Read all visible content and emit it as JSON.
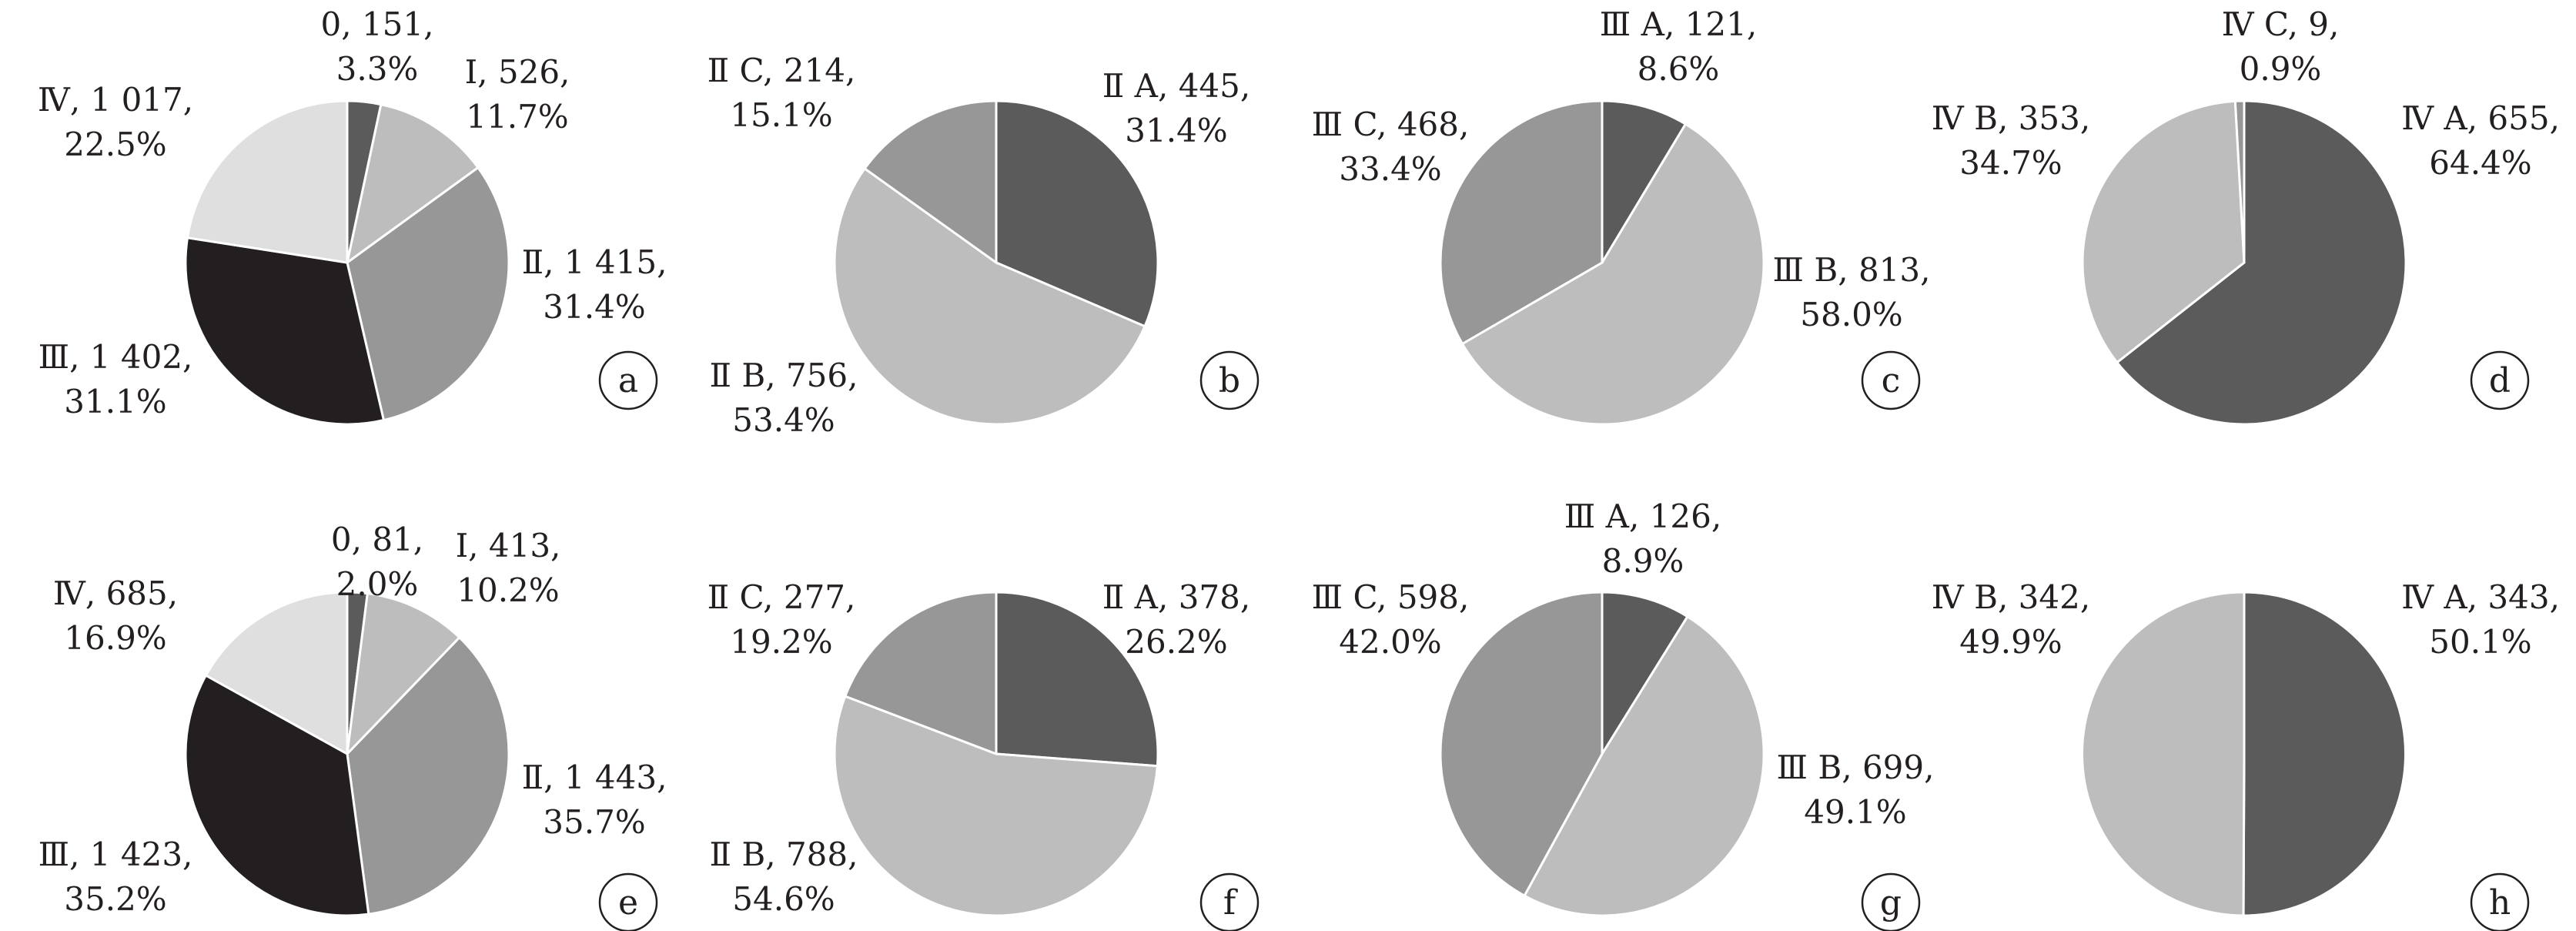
{
  "chart_data": [
    {
      "type": "pie",
      "panel_label": "a",
      "slices": [
        {
          "category": "0",
          "value": 151,
          "percent": "3.3%",
          "label_line1": "0, 151,",
          "label_line2": "3.3%",
          "color": "#5b5b5b"
        },
        {
          "category": "Ⅰ",
          "value": 526,
          "percent": "11.7%",
          "label_line1": "Ⅰ, 526,",
          "label_line2": "11.7%",
          "color": "#bdbdbd"
        },
        {
          "category": "Ⅱ",
          "value": 1415,
          "percent": "31.4%",
          "label_line1": "Ⅱ, 1 415,",
          "label_line2": "31.4%",
          "color": "#979797"
        },
        {
          "category": "Ⅲ",
          "value": 1402,
          "percent": "31.1%",
          "label_line1": "Ⅲ, 1 402,",
          "label_line2": "31.1%",
          "color": "#231f20"
        },
        {
          "category": "Ⅳ",
          "value": 1017,
          "percent": "22.5%",
          "label_line1": "Ⅳ, 1 017,",
          "label_line2": "22.5%",
          "color": "#dfdfdf"
        }
      ]
    },
    {
      "type": "pie",
      "panel_label": "b",
      "slices": [
        {
          "category": "ⅡA",
          "value": 445,
          "percent": "31.4%",
          "label_line1": "Ⅱ A, 445,",
          "label_line2": "31.4%",
          "color": "#5b5b5b"
        },
        {
          "category": "ⅡB",
          "value": 756,
          "percent": "53.4%",
          "label_line1": "Ⅱ B, 756,",
          "label_line2": "53.4%",
          "color": "#bdbdbd"
        },
        {
          "category": "ⅡC",
          "value": 214,
          "percent": "15.1%",
          "label_line1": "Ⅱ C, 214,",
          "label_line2": "15.1%",
          "color": "#979797"
        }
      ]
    },
    {
      "type": "pie",
      "panel_label": "c",
      "slices": [
        {
          "category": "ⅢA",
          "value": 121,
          "percent": "8.6%",
          "label_line1": "Ⅲ A, 121,",
          "label_line2": "8.6%",
          "color": "#5b5b5b"
        },
        {
          "category": "ⅢB",
          "value": 813,
          "percent": "58.0%",
          "label_line1": "Ⅲ B, 813,",
          "label_line2": "58.0%",
          "color": "#bdbdbd"
        },
        {
          "category": "ⅢC",
          "value": 468,
          "percent": "33.4%",
          "label_line1": "Ⅲ C, 468,",
          "label_line2": "33.4%",
          "color": "#979797"
        }
      ]
    },
    {
      "type": "pie",
      "panel_label": "d",
      "slices": [
        {
          "category": "ⅣA",
          "value": 655,
          "percent": "64.4%",
          "label_line1": "Ⅳ A, 655,",
          "label_line2": "64.4%",
          "color": "#5b5b5b"
        },
        {
          "category": "ⅣB",
          "value": 353,
          "percent": "34.7%",
          "label_line1": "Ⅳ B, 353,",
          "label_line2": "34.7%",
          "color": "#bdbdbd"
        },
        {
          "category": "ⅣC",
          "value": 9,
          "percent": "0.9%",
          "label_line1": "Ⅳ C, 9,",
          "label_line2": "0.9%",
          "color": "#979797"
        }
      ]
    },
    {
      "type": "pie",
      "panel_label": "e",
      "slices": [
        {
          "category": "0",
          "value": 81,
          "percent": "2.0%",
          "label_line1": "0, 81,",
          "label_line2": "2.0%",
          "color": "#5b5b5b"
        },
        {
          "category": "Ⅰ",
          "value": 413,
          "percent": "10.2%",
          "label_line1": "Ⅰ, 413,",
          "label_line2": "10.2%",
          "color": "#bdbdbd"
        },
        {
          "category": "Ⅱ",
          "value": 1443,
          "percent": "35.7%",
          "label_line1": "Ⅱ, 1 443,",
          "label_line2": "35.7%",
          "color": "#979797"
        },
        {
          "category": "Ⅲ",
          "value": 1423,
          "percent": "35.2%",
          "label_line1": "Ⅲ, 1 423,",
          "label_line2": "35.2%",
          "color": "#231f20"
        },
        {
          "category": "Ⅳ",
          "value": 685,
          "percent": "16.9%",
          "label_line1": "Ⅳ, 685,",
          "label_line2": "16.9%",
          "color": "#dfdfdf"
        }
      ]
    },
    {
      "type": "pie",
      "panel_label": "f",
      "slices": [
        {
          "category": "ⅡA",
          "value": 378,
          "percent": "26.2%",
          "label_line1": "Ⅱ A, 378,",
          "label_line2": "26.2%",
          "color": "#5b5b5b"
        },
        {
          "category": "ⅡB",
          "value": 788,
          "percent": "54.6%",
          "label_line1": "Ⅱ B, 788,",
          "label_line2": "54.6%",
          "color": "#bdbdbd"
        },
        {
          "category": "ⅡC",
          "value": 277,
          "percent": "19.2%",
          "label_line1": "Ⅱ C, 277,",
          "label_line2": "19.2%",
          "color": "#979797"
        }
      ]
    },
    {
      "type": "pie",
      "panel_label": "g",
      "slices": [
        {
          "category": "ⅢA",
          "value": 126,
          "percent": "8.9%",
          "label_line1": "Ⅲ A, 126,",
          "label_line2": "8.9%",
          "color": "#5b5b5b"
        },
        {
          "category": "ⅢB",
          "value": 699,
          "percent": "49.1%",
          "label_line1": "Ⅲ B, 699,",
          "label_line2": "49.1%",
          "color": "#bdbdbd"
        },
        {
          "category": "ⅢC",
          "value": 598,
          "percent": "42.0%",
          "label_line1": "Ⅲ C, 598,",
          "label_line2": "42.0%",
          "color": "#979797"
        }
      ]
    },
    {
      "type": "pie",
      "panel_label": "h",
      "slices": [
        {
          "category": "ⅣA",
          "value": 343,
          "percent": "50.1%",
          "label_line1": "Ⅳ A, 343,",
          "label_line2": "50.1%",
          "color": "#5b5b5b"
        },
        {
          "category": "ⅣB",
          "value": 342,
          "percent": "49.9%",
          "label_line1": "Ⅳ B, 342,",
          "label_line2": "49.9%",
          "color": "#bdbdbd"
        }
      ]
    }
  ]
}
